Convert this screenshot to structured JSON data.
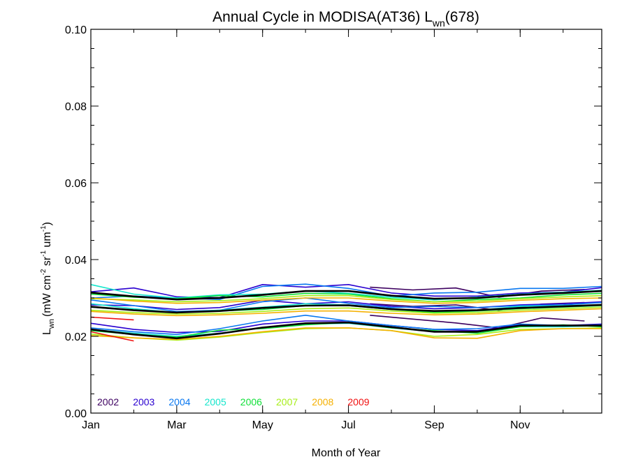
{
  "chart_data": {
    "type": "line",
    "title": "Annual Cycle in MODISA(AT36) L",
    "title_sub": "wn",
    "title_suffix": "(678)",
    "xlabel": "Month of Year",
    "ylabel": {
      "main": "L",
      "main_sub": "wn",
      "unit_open": "(mW cm",
      "unit_exp1": "-2",
      "unit_mid1": " sr",
      "unit_exp2": "-1",
      "unit_mid2": " um",
      "unit_exp3": "-1",
      "unit_close": ")"
    },
    "xlim": [
      1,
      12.9
    ],
    "ylim": [
      0.0,
      0.1
    ],
    "x_ticks": [
      {
        "value": 1,
        "label": "Jan"
      },
      {
        "value": 3,
        "label": "Mar"
      },
      {
        "value": 5,
        "label": "May"
      },
      {
        "value": 7,
        "label": "Jul"
      },
      {
        "value": 9,
        "label": "Sep"
      },
      {
        "value": 11,
        "label": "Nov"
      }
    ],
    "y_ticks": [
      {
        "value": 0.0,
        "label": "0.00"
      },
      {
        "value": 0.02,
        "label": "0.02"
      },
      {
        "value": 0.04,
        "label": "0.04"
      },
      {
        "value": 0.06,
        "label": "0.06"
      },
      {
        "value": 0.08,
        "label": "0.08"
      },
      {
        "value": 0.1,
        "label": "0.10"
      }
    ],
    "grid": false,
    "legend_position": "bottom-left",
    "series": [
      {
        "name": "2002",
        "color": "#3d0060",
        "lines": [
          {
            "x": [
              7.5,
              8.5,
              9.5,
              10.5,
              11.5,
              12.5
            ],
            "y": [
              0.0328,
              0.0321,
              0.0326,
              0.0302,
              0.0318,
              0.0322
            ]
          },
          {
            "x": [
              7.5,
              8.5,
              9.5,
              10.5,
              11.5,
              12.5
            ],
            "y": [
              0.0285,
              0.0278,
              0.0282,
              0.0268,
              0.0284,
              0.0288
            ]
          },
          {
            "x": [
              7.5,
              8.5,
              9.5,
              10.5,
              11.5,
              12.5
            ],
            "y": [
              0.0255,
              0.0245,
              0.0235,
              0.0222,
              0.0248,
              0.024
            ]
          }
        ]
      },
      {
        "name": "2003",
        "color": "#2a00d0",
        "lines": [
          {
            "x": [
              1.0,
              2.0,
              3.0,
              4.0,
              5.0,
              6.0,
              7.0,
              8.0,
              9.0,
              10.0,
              11.0,
              12.0,
              12.9
            ],
            "y": [
              0.0316,
              0.0326,
              0.0303,
              0.0301,
              0.0335,
              0.0328,
              0.0335,
              0.0313,
              0.0305,
              0.0305,
              0.0313,
              0.0315,
              0.0327
            ]
          },
          {
            "x": [
              1.0,
              2.0,
              3.0,
              4.0,
              5.0,
              6.0,
              7.0,
              8.0,
              9.0,
              10.0,
              11.0,
              12.0,
              12.9
            ],
            "y": [
              0.0282,
              0.028,
              0.027,
              0.0275,
              0.0294,
              0.0285,
              0.029,
              0.0278,
              0.0272,
              0.0275,
              0.0282,
              0.0285,
              0.029
            ]
          },
          {
            "x": [
              1.0,
              2.0,
              3.0,
              4.0,
              5.0,
              6.0,
              7.0,
              8.0,
              9.0,
              10.0,
              11.0,
              12.0,
              12.9
            ],
            "y": [
              0.0234,
              0.0218,
              0.021,
              0.0213,
              0.0232,
              0.024,
              0.024,
              0.0228,
              0.0218,
              0.0215,
              0.023,
              0.0228,
              0.0232
            ]
          }
        ]
      },
      {
        "name": "2004",
        "color": "#0a78f0",
        "lines": [
          {
            "x": [
              1.0,
              2.0,
              3.0,
              4.0,
              5.0,
              6.0,
              7.0,
              8.0,
              9.0,
              10.0,
              11.0,
              12.0,
              12.9
            ],
            "y": [
              0.03,
              0.0305,
              0.03,
              0.0296,
              0.033,
              0.0336,
              0.0325,
              0.0305,
              0.0313,
              0.0315,
              0.0325,
              0.0325,
              0.033
            ]
          },
          {
            "x": [
              1.0,
              2.0,
              3.0,
              4.0,
              5.0,
              6.0,
              7.0,
              8.0,
              9.0,
              10.0,
              11.0,
              12.0,
              12.9
            ],
            "y": [
              0.0295,
              0.028,
              0.0265,
              0.0268,
              0.029,
              0.03,
              0.0286,
              0.0275,
              0.0278,
              0.0275,
              0.028,
              0.0282,
              0.0288
            ]
          },
          {
            "x": [
              1.0,
              2.0,
              3.0,
              4.0,
              5.0,
              6.0,
              7.0,
              8.0,
              9.0,
              10.0,
              11.0,
              12.0,
              12.9
            ],
            "y": [
              0.0222,
              0.0212,
              0.0205,
              0.022,
              0.024,
              0.0255,
              0.024,
              0.0228,
              0.0218,
              0.022,
              0.0232,
              0.0228,
              0.023
            ]
          }
        ]
      },
      {
        "name": "2005",
        "color": "#16e6cc",
        "lines": [
          {
            "x": [
              1.0,
              2.0,
              3.0,
              4.0,
              5.0,
              6.0,
              7.0,
              8.0,
              9.0,
              10.0,
              11.0,
              12.0,
              12.9
            ],
            "y": [
              0.0335,
              0.031,
              0.03,
              0.0308,
              0.031,
              0.0318,
              0.0312,
              0.0302,
              0.0295,
              0.0302,
              0.031,
              0.0315,
              0.032
            ]
          },
          {
            "x": [
              1.0,
              2.0,
              3.0,
              4.0,
              5.0,
              6.0,
              7.0,
              8.0,
              9.0,
              10.0,
              11.0,
              12.0,
              12.9
            ],
            "y": [
              0.0285,
              0.0272,
              0.0262,
              0.0268,
              0.0276,
              0.0285,
              0.0282,
              0.0272,
              0.0264,
              0.0268,
              0.0278,
              0.028,
              0.0282
            ]
          },
          {
            "x": [
              1.0,
              2.0,
              3.0,
              4.0,
              5.0,
              6.0,
              7.0,
              8.0,
              9.0,
              10.0,
              11.0,
              12.0,
              12.9
            ],
            "y": [
              0.0218,
              0.0208,
              0.02,
              0.0208,
              0.0222,
              0.0232,
              0.0234,
              0.0222,
              0.0212,
              0.0212,
              0.0225,
              0.0225,
              0.0228
            ]
          }
        ]
      },
      {
        "name": "2006",
        "color": "#10e038",
        "lines": [
          {
            "x": [
              1.0,
              2.0,
              3.0,
              4.0,
              5.0,
              6.0,
              7.0,
              8.0,
              9.0,
              10.0,
              11.0,
              12.0,
              12.9
            ],
            "y": [
              0.031,
              0.0302,
              0.0298,
              0.0306,
              0.0303,
              0.0312,
              0.031,
              0.0298,
              0.029,
              0.0296,
              0.03,
              0.0308,
              0.0312
            ]
          },
          {
            "x": [
              1.0,
              2.0,
              3.0,
              4.0,
              5.0,
              6.0,
              7.0,
              8.0,
              9.0,
              10.0,
              11.0,
              12.0,
              12.9
            ],
            "y": [
              0.0276,
              0.0268,
              0.0262,
              0.0266,
              0.027,
              0.028,
              0.028,
              0.027,
              0.0262,
              0.0266,
              0.0272,
              0.0276,
              0.028
            ]
          },
          {
            "x": [
              1.0,
              2.0,
              3.0,
              4.0,
              5.0,
              6.0,
              7.0,
              8.0,
              9.0,
              10.0,
              11.0,
              12.0,
              12.9
            ],
            "y": [
              0.0215,
              0.0205,
              0.0198,
              0.0216,
              0.022,
              0.023,
              0.0236,
              0.0222,
              0.0215,
              0.0208,
              0.0225,
              0.023,
              0.0225
            ]
          }
        ]
      },
      {
        "name": "2007",
        "color": "#a6ee18",
        "lines": [
          {
            "x": [
              1.0,
              2.0,
              3.0,
              4.0,
              5.0,
              6.0,
              7.0,
              8.0,
              9.0,
              10.0,
              11.0,
              12.0,
              12.9
            ],
            "y": [
              0.0298,
              0.0295,
              0.029,
              0.0293,
              0.0298,
              0.0306,
              0.0306,
              0.0296,
              0.029,
              0.0292,
              0.0298,
              0.0303,
              0.0306
            ]
          },
          {
            "x": [
              1.0,
              2.0,
              3.0,
              4.0,
              5.0,
              6.0,
              7.0,
              8.0,
              9.0,
              10.0,
              11.0,
              12.0,
              12.9
            ],
            "y": [
              0.0268,
              0.0262,
              0.0258,
              0.026,
              0.0265,
              0.0272,
              0.0274,
              0.0266,
              0.026,
              0.0262,
              0.0268,
              0.0272,
              0.0276
            ]
          },
          {
            "x": [
              1.0,
              2.0,
              3.0,
              4.0,
              5.0,
              6.0,
              7.0,
              8.0,
              9.0,
              10.0,
              11.0,
              12.0,
              12.9
            ],
            "y": [
              0.0206,
              0.0196,
              0.019,
              0.0198,
              0.021,
              0.022,
              0.0222,
              0.0215,
              0.02,
              0.0205,
              0.0218,
              0.022,
              0.0222
            ]
          }
        ]
      },
      {
        "name": "2008",
        "color": "#f5b000",
        "lines": [
          {
            "x": [
              1.0,
              2.0,
              3.0,
              4.0,
              5.0,
              6.0,
              7.0,
              8.0,
              9.0,
              10.0,
              11.0,
              12.0,
              12.9
            ],
            "y": [
              0.03,
              0.0292,
              0.0286,
              0.0288,
              0.0294,
              0.03,
              0.03,
              0.0292,
              0.0286,
              0.0288,
              0.0294,
              0.0298,
              0.03
            ]
          },
          {
            "x": [
              1.0,
              2.0,
              3.0,
              4.0,
              5.0,
              6.0,
              7.0,
              8.0,
              9.0,
              10.0,
              11.0,
              12.0,
              12.9
            ],
            "y": [
              0.0265,
              0.0258,
              0.0254,
              0.0256,
              0.026,
              0.0266,
              0.0266,
              0.026,
              0.0256,
              0.0258,
              0.0264,
              0.0268,
              0.0272
            ]
          },
          {
            "x": [
              1.0,
              2.0,
              3.0,
              4.0,
              5.0,
              6.0,
              7.0,
              8.0,
              9.0,
              10.0,
              11.0,
              12.0,
              12.9
            ],
            "y": [
              0.0202,
              0.0196,
              0.0192,
              0.02,
              0.0212,
              0.0222,
              0.0222,
              0.0215,
              0.0196,
              0.0195,
              0.0215,
              0.022,
              0.022
            ]
          }
        ]
      },
      {
        "name": "2009",
        "color": "#f01010",
        "lines": [
          {
            "x": [
              1.0,
              2.0
            ],
            "y": [
              0.025,
              0.0243
            ]
          },
          {
            "x": [
              1.0,
              2.0
            ],
            "y": [
              0.0212,
              0.0188
            ]
          }
        ]
      },
      {
        "name": "",
        "color": "#000000",
        "width": 2.6,
        "lines": [
          {
            "x": [
              1.0,
              2.0,
              3.0,
              4.0,
              5.0,
              6.0,
              7.0,
              8.0,
              9.0,
              10.0,
              11.0,
              12.0,
              12.9
            ],
            "y": [
              0.0314,
              0.0304,
              0.0296,
              0.03,
              0.0308,
              0.0318,
              0.0318,
              0.0306,
              0.0298,
              0.03,
              0.0308,
              0.0313,
              0.0318
            ]
          },
          {
            "x": [
              1.0,
              2.0,
              3.0,
              4.0,
              5.0,
              6.0,
              7.0,
              8.0,
              9.0,
              10.0,
              11.0,
              12.0,
              12.9
            ],
            "y": [
              0.0277,
              0.0268,
              0.0262,
              0.0266,
              0.0274,
              0.028,
              0.0281,
              0.0271,
              0.0266,
              0.0268,
              0.0274,
              0.0278,
              0.0282
            ]
          },
          {
            "x": [
              1.0,
              2.0,
              3.0,
              4.0,
              5.0,
              6.0,
              7.0,
              8.0,
              9.0,
              10.0,
              11.0,
              12.0,
              12.9
            ],
            "y": [
              0.0218,
              0.0205,
              0.0195,
              0.0207,
              0.0223,
              0.0234,
              0.0236,
              0.0224,
              0.0212,
              0.0212,
              0.0228,
              0.0228,
              0.0228
            ]
          }
        ]
      }
    ]
  }
}
